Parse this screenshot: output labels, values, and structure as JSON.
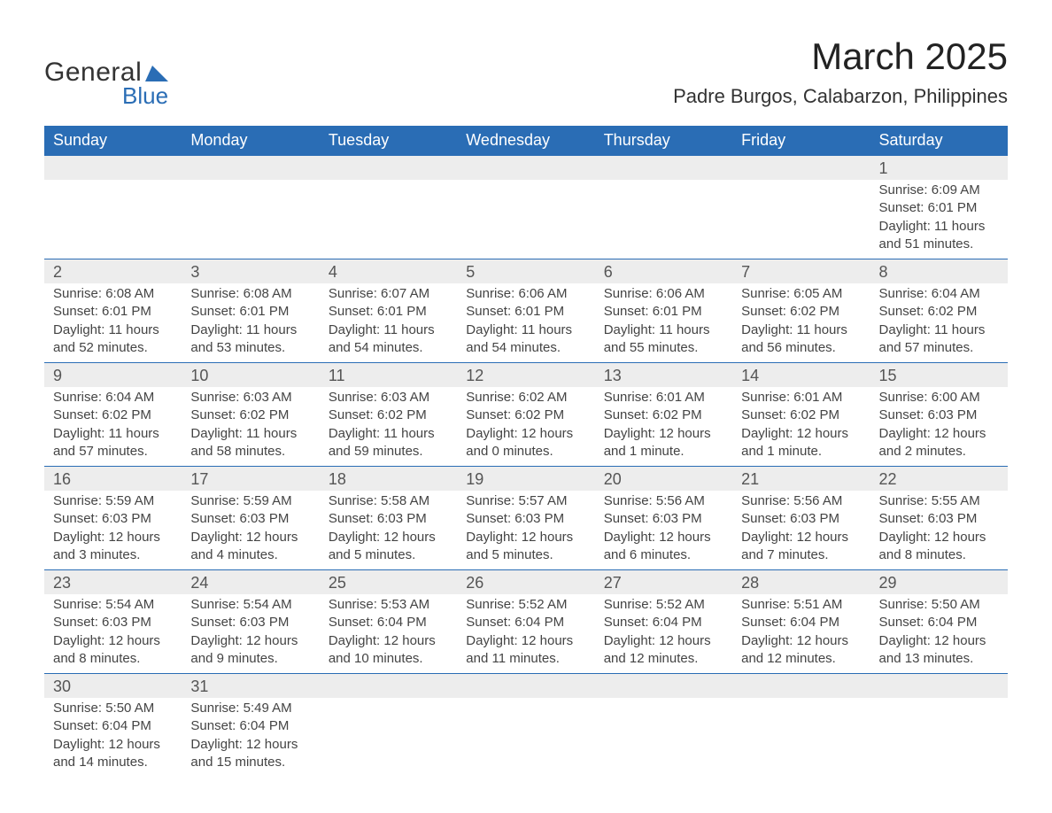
{
  "logo": {
    "text_general": "General",
    "text_blue": "Blue",
    "icon_color": "#2a6db5"
  },
  "title": {
    "month": "March 2025",
    "location": "Padre Burgos, Calabarzon, Philippines"
  },
  "colors": {
    "header_bg": "#2a6db5",
    "header_text": "#ffffff",
    "daynum_bg": "#ededed",
    "row_border": "#2a6db5",
    "body_text": "#444444",
    "page_bg": "#ffffff"
  },
  "typography": {
    "month_title_size": 42,
    "location_size": 22,
    "weekday_size": 18,
    "daynum_size": 18,
    "detail_size": 15,
    "font_family": "Arial"
  },
  "weekdays": [
    "Sunday",
    "Monday",
    "Tuesday",
    "Wednesday",
    "Thursday",
    "Friday",
    "Saturday"
  ],
  "weeks": [
    [
      {
        "day": "",
        "sunrise": "",
        "sunset": "",
        "daylight": ""
      },
      {
        "day": "",
        "sunrise": "",
        "sunset": "",
        "daylight": ""
      },
      {
        "day": "",
        "sunrise": "",
        "sunset": "",
        "daylight": ""
      },
      {
        "day": "",
        "sunrise": "",
        "sunset": "",
        "daylight": ""
      },
      {
        "day": "",
        "sunrise": "",
        "sunset": "",
        "daylight": ""
      },
      {
        "day": "",
        "sunrise": "",
        "sunset": "",
        "daylight": ""
      },
      {
        "day": "1",
        "sunrise": "Sunrise: 6:09 AM",
        "sunset": "Sunset: 6:01 PM",
        "daylight": "Daylight: 11 hours and 51 minutes."
      }
    ],
    [
      {
        "day": "2",
        "sunrise": "Sunrise: 6:08 AM",
        "sunset": "Sunset: 6:01 PM",
        "daylight": "Daylight: 11 hours and 52 minutes."
      },
      {
        "day": "3",
        "sunrise": "Sunrise: 6:08 AM",
        "sunset": "Sunset: 6:01 PM",
        "daylight": "Daylight: 11 hours and 53 minutes."
      },
      {
        "day": "4",
        "sunrise": "Sunrise: 6:07 AM",
        "sunset": "Sunset: 6:01 PM",
        "daylight": "Daylight: 11 hours and 54 minutes."
      },
      {
        "day": "5",
        "sunrise": "Sunrise: 6:06 AM",
        "sunset": "Sunset: 6:01 PM",
        "daylight": "Daylight: 11 hours and 54 minutes."
      },
      {
        "day": "6",
        "sunrise": "Sunrise: 6:06 AM",
        "sunset": "Sunset: 6:01 PM",
        "daylight": "Daylight: 11 hours and 55 minutes."
      },
      {
        "day": "7",
        "sunrise": "Sunrise: 6:05 AM",
        "sunset": "Sunset: 6:02 PM",
        "daylight": "Daylight: 11 hours and 56 minutes."
      },
      {
        "day": "8",
        "sunrise": "Sunrise: 6:04 AM",
        "sunset": "Sunset: 6:02 PM",
        "daylight": "Daylight: 11 hours and 57 minutes."
      }
    ],
    [
      {
        "day": "9",
        "sunrise": "Sunrise: 6:04 AM",
        "sunset": "Sunset: 6:02 PM",
        "daylight": "Daylight: 11 hours and 57 minutes."
      },
      {
        "day": "10",
        "sunrise": "Sunrise: 6:03 AM",
        "sunset": "Sunset: 6:02 PM",
        "daylight": "Daylight: 11 hours and 58 minutes."
      },
      {
        "day": "11",
        "sunrise": "Sunrise: 6:03 AM",
        "sunset": "Sunset: 6:02 PM",
        "daylight": "Daylight: 11 hours and 59 minutes."
      },
      {
        "day": "12",
        "sunrise": "Sunrise: 6:02 AM",
        "sunset": "Sunset: 6:02 PM",
        "daylight": "Daylight: 12 hours and 0 minutes."
      },
      {
        "day": "13",
        "sunrise": "Sunrise: 6:01 AM",
        "sunset": "Sunset: 6:02 PM",
        "daylight": "Daylight: 12 hours and 1 minute."
      },
      {
        "day": "14",
        "sunrise": "Sunrise: 6:01 AM",
        "sunset": "Sunset: 6:02 PM",
        "daylight": "Daylight: 12 hours and 1 minute."
      },
      {
        "day": "15",
        "sunrise": "Sunrise: 6:00 AM",
        "sunset": "Sunset: 6:03 PM",
        "daylight": "Daylight: 12 hours and 2 minutes."
      }
    ],
    [
      {
        "day": "16",
        "sunrise": "Sunrise: 5:59 AM",
        "sunset": "Sunset: 6:03 PM",
        "daylight": "Daylight: 12 hours and 3 minutes."
      },
      {
        "day": "17",
        "sunrise": "Sunrise: 5:59 AM",
        "sunset": "Sunset: 6:03 PM",
        "daylight": "Daylight: 12 hours and 4 minutes."
      },
      {
        "day": "18",
        "sunrise": "Sunrise: 5:58 AM",
        "sunset": "Sunset: 6:03 PM",
        "daylight": "Daylight: 12 hours and 5 minutes."
      },
      {
        "day": "19",
        "sunrise": "Sunrise: 5:57 AM",
        "sunset": "Sunset: 6:03 PM",
        "daylight": "Daylight: 12 hours and 5 minutes."
      },
      {
        "day": "20",
        "sunrise": "Sunrise: 5:56 AM",
        "sunset": "Sunset: 6:03 PM",
        "daylight": "Daylight: 12 hours and 6 minutes."
      },
      {
        "day": "21",
        "sunrise": "Sunrise: 5:56 AM",
        "sunset": "Sunset: 6:03 PM",
        "daylight": "Daylight: 12 hours and 7 minutes."
      },
      {
        "day": "22",
        "sunrise": "Sunrise: 5:55 AM",
        "sunset": "Sunset: 6:03 PM",
        "daylight": "Daylight: 12 hours and 8 minutes."
      }
    ],
    [
      {
        "day": "23",
        "sunrise": "Sunrise: 5:54 AM",
        "sunset": "Sunset: 6:03 PM",
        "daylight": "Daylight: 12 hours and 8 minutes."
      },
      {
        "day": "24",
        "sunrise": "Sunrise: 5:54 AM",
        "sunset": "Sunset: 6:03 PM",
        "daylight": "Daylight: 12 hours and 9 minutes."
      },
      {
        "day": "25",
        "sunrise": "Sunrise: 5:53 AM",
        "sunset": "Sunset: 6:04 PM",
        "daylight": "Daylight: 12 hours and 10 minutes."
      },
      {
        "day": "26",
        "sunrise": "Sunrise: 5:52 AM",
        "sunset": "Sunset: 6:04 PM",
        "daylight": "Daylight: 12 hours and 11 minutes."
      },
      {
        "day": "27",
        "sunrise": "Sunrise: 5:52 AM",
        "sunset": "Sunset: 6:04 PM",
        "daylight": "Daylight: 12 hours and 12 minutes."
      },
      {
        "day": "28",
        "sunrise": "Sunrise: 5:51 AM",
        "sunset": "Sunset: 6:04 PM",
        "daylight": "Daylight: 12 hours and 12 minutes."
      },
      {
        "day": "29",
        "sunrise": "Sunrise: 5:50 AM",
        "sunset": "Sunset: 6:04 PM",
        "daylight": "Daylight: 12 hours and 13 minutes."
      }
    ],
    [
      {
        "day": "30",
        "sunrise": "Sunrise: 5:50 AM",
        "sunset": "Sunset: 6:04 PM",
        "daylight": "Daylight: 12 hours and 14 minutes."
      },
      {
        "day": "31",
        "sunrise": "Sunrise: 5:49 AM",
        "sunset": "Sunset: 6:04 PM",
        "daylight": "Daylight: 12 hours and 15 minutes."
      },
      {
        "day": "",
        "sunrise": "",
        "sunset": "",
        "daylight": ""
      },
      {
        "day": "",
        "sunrise": "",
        "sunset": "",
        "daylight": ""
      },
      {
        "day": "",
        "sunrise": "",
        "sunset": "",
        "daylight": ""
      },
      {
        "day": "",
        "sunrise": "",
        "sunset": "",
        "daylight": ""
      },
      {
        "day": "",
        "sunrise": "",
        "sunset": "",
        "daylight": ""
      }
    ]
  ]
}
